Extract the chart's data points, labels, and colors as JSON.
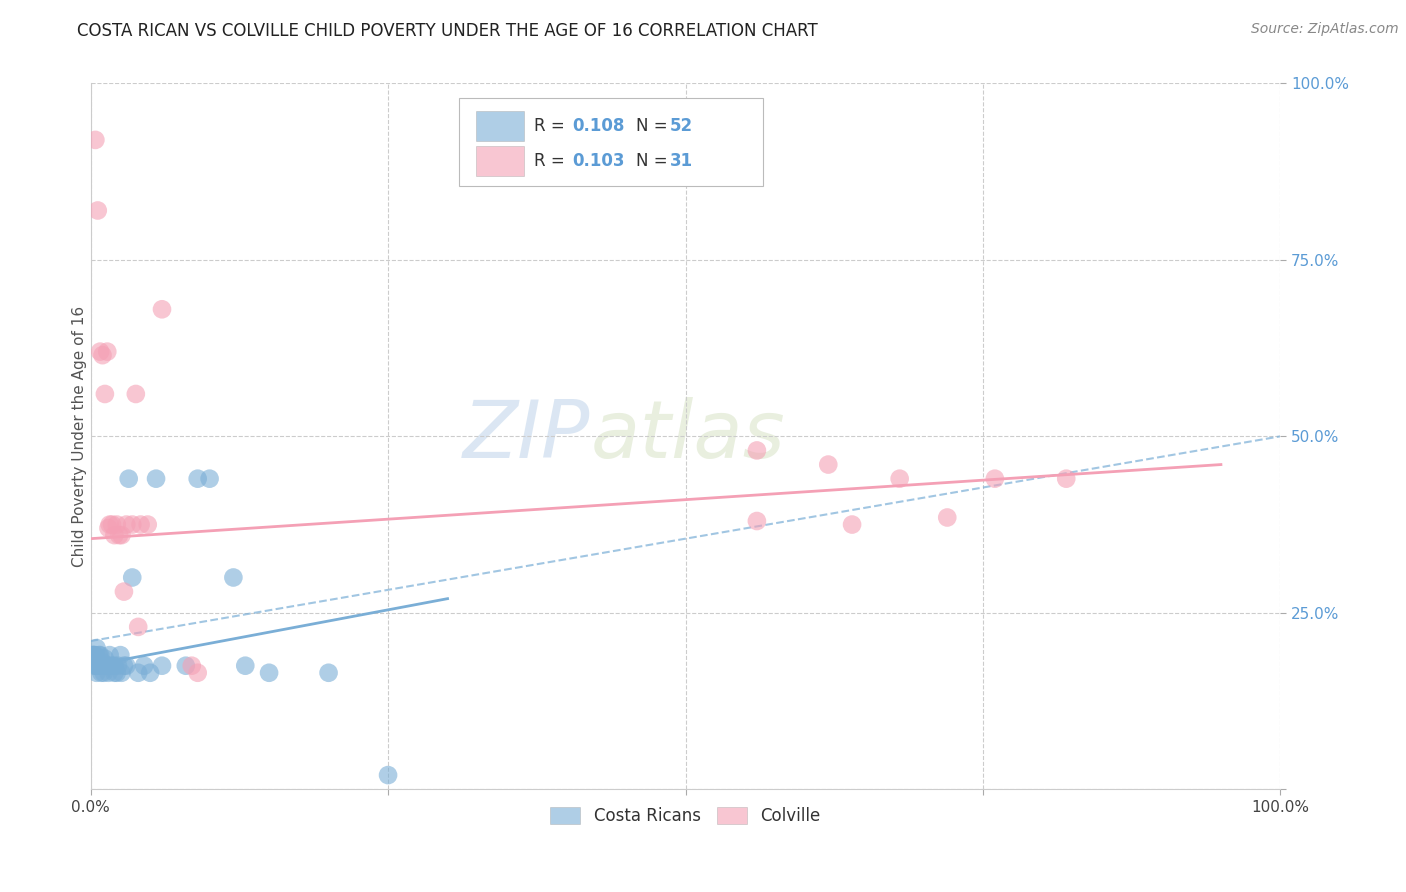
{
  "title": "COSTA RICAN VS COLVILLE CHILD POVERTY UNDER THE AGE OF 16 CORRELATION CHART",
  "source": "Source: ZipAtlas.com",
  "ylabel": "Child Poverty Under the Age of 16",
  "xlim": [
    0,
    1
  ],
  "ylim": [
    0,
    1
  ],
  "legend_label1": "Costa Ricans",
  "legend_label2": "Colville",
  "blue_color": "#7aaed6",
  "pink_color": "#f4a0b5",
  "blue_scatter": [
    [
      0.002,
      0.19
    ],
    [
      0.002,
      0.19
    ],
    [
      0.002,
      0.19
    ],
    [
      0.003,
      0.19
    ],
    [
      0.003,
      0.175
    ],
    [
      0.004,
      0.19
    ],
    [
      0.004,
      0.18
    ],
    [
      0.005,
      0.2
    ],
    [
      0.005,
      0.175
    ],
    [
      0.005,
      0.175
    ],
    [
      0.005,
      0.165
    ],
    [
      0.006,
      0.175
    ],
    [
      0.006,
      0.18
    ],
    [
      0.007,
      0.175
    ],
    [
      0.007,
      0.19
    ],
    [
      0.008,
      0.175
    ],
    [
      0.008,
      0.19
    ],
    [
      0.009,
      0.175
    ],
    [
      0.009,
      0.165
    ],
    [
      0.01,
      0.175
    ],
    [
      0.01,
      0.18
    ],
    [
      0.011,
      0.175
    ],
    [
      0.011,
      0.165
    ],
    [
      0.012,
      0.185
    ],
    [
      0.013,
      0.175
    ],
    [
      0.015,
      0.175
    ],
    [
      0.015,
      0.165
    ],
    [
      0.016,
      0.19
    ],
    [
      0.018,
      0.175
    ],
    [
      0.02,
      0.165
    ],
    [
      0.02,
      0.175
    ],
    [
      0.022,
      0.165
    ],
    [
      0.023,
      0.175
    ],
    [
      0.025,
      0.19
    ],
    [
      0.026,
      0.165
    ],
    [
      0.028,
      0.175
    ],
    [
      0.03,
      0.175
    ],
    [
      0.032,
      0.44
    ],
    [
      0.035,
      0.3
    ],
    [
      0.04,
      0.165
    ],
    [
      0.045,
      0.175
    ],
    [
      0.05,
      0.165
    ],
    [
      0.055,
      0.44
    ],
    [
      0.06,
      0.175
    ],
    [
      0.08,
      0.175
    ],
    [
      0.09,
      0.44
    ],
    [
      0.1,
      0.44
    ],
    [
      0.12,
      0.3
    ],
    [
      0.13,
      0.175
    ],
    [
      0.15,
      0.165
    ],
    [
      0.2,
      0.165
    ],
    [
      0.25,
      0.02
    ]
  ],
  "pink_scatter": [
    [
      0.004,
      0.92
    ],
    [
      0.006,
      0.82
    ],
    [
      0.008,
      0.62
    ],
    [
      0.01,
      0.615
    ],
    [
      0.012,
      0.56
    ],
    [
      0.014,
      0.62
    ],
    [
      0.015,
      0.37
    ],
    [
      0.016,
      0.375
    ],
    [
      0.018,
      0.375
    ],
    [
      0.02,
      0.36
    ],
    [
      0.022,
      0.375
    ],
    [
      0.024,
      0.36
    ],
    [
      0.026,
      0.36
    ],
    [
      0.028,
      0.28
    ],
    [
      0.03,
      0.375
    ],
    [
      0.035,
      0.375
    ],
    [
      0.038,
      0.56
    ],
    [
      0.04,
      0.23
    ],
    [
      0.042,
      0.375
    ],
    [
      0.048,
      0.375
    ],
    [
      0.06,
      0.68
    ],
    [
      0.085,
      0.175
    ],
    [
      0.09,
      0.165
    ],
    [
      0.56,
      0.48
    ],
    [
      0.56,
      0.38
    ],
    [
      0.62,
      0.46
    ],
    [
      0.64,
      0.375
    ],
    [
      0.68,
      0.44
    ],
    [
      0.72,
      0.385
    ],
    [
      0.76,
      0.44
    ],
    [
      0.82,
      0.44
    ]
  ],
  "blue_trend": [
    0.0,
    0.175,
    0.3,
    0.27
  ],
  "pink_trend": [
    0.0,
    0.355,
    0.95,
    0.46
  ],
  "blue_dashed_trend": [
    0.0,
    0.21,
    1.0,
    0.5
  ],
  "watermark_zip": "ZIP",
  "watermark_atlas": "atlas",
  "background_color": "#FFFFFF",
  "grid_color": "#CCCCCC",
  "ytick_color": "#5b9bd5",
  "title_fontsize": 12,
  "axis_fontsize": 11
}
